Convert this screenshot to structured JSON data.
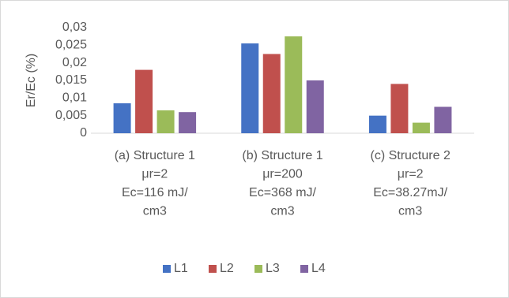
{
  "chart_data": {
    "type": "bar",
    "y_label": "Er/Ec (%)",
    "categories": [
      [
        "(a) Structure 1",
        "μr=2",
        "Ec=116 mJ/",
        "cm3"
      ],
      [
        "(b) Structure 1",
        "μr=200",
        "Ec=368 mJ/",
        "cm3"
      ],
      [
        "(c) Structure 2",
        "μr=2",
        "Ec=38.27mJ/",
        "cm3"
      ]
    ],
    "series": [
      {
        "name": "L1",
        "color": "#4472c4",
        "values": [
          0.0085,
          0.0255,
          0.005
        ]
      },
      {
        "name": "L2",
        "color": "#c0504d",
        "values": [
          0.018,
          0.0225,
          0.014
        ]
      },
      {
        "name": "L3",
        "color": "#9bbb59",
        "values": [
          0.0065,
          0.0275,
          0.003
        ]
      },
      {
        "name": "L4",
        "color": "#8064a2",
        "values": [
          0.006,
          0.015,
          0.0075
        ]
      }
    ],
    "ylim": [
      0,
      0.03
    ],
    "yticks": [
      0,
      {
        "value": 0.005,
        "label": "0,005"
      },
      {
        "value": 0.01,
        "label": "0,01"
      },
      {
        "value": 0.015,
        "label": "0,015"
      },
      {
        "value": 0.02,
        "label": "0,02"
      },
      {
        "value": 0.025,
        "label": "0,025"
      },
      {
        "value": 0.03,
        "label": "0,03"
      }
    ],
    "grid": false,
    "legend": "bottom"
  }
}
